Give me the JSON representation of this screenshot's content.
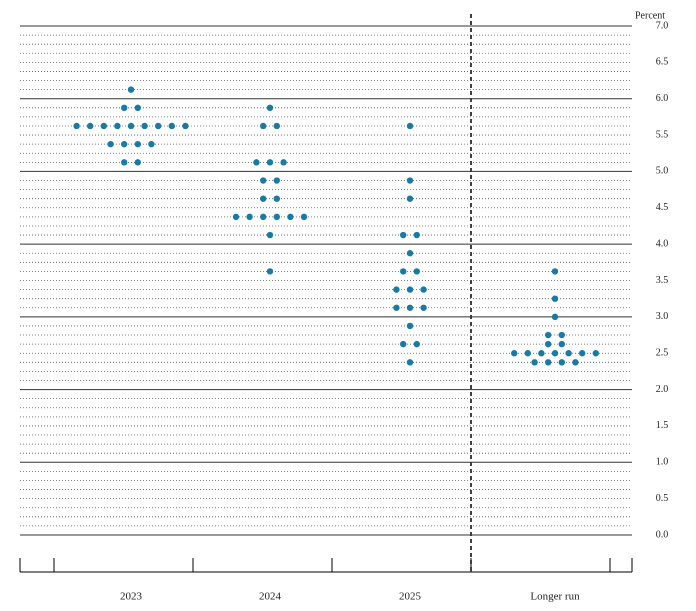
{
  "chart_data": {
    "type": "dot",
    "y_label": "Percent",
    "categories": [
      "2023",
      "2024",
      "2025",
      "Longer run"
    ],
    "color": "#1a7aa6",
    "dots": [
      [
        6.125,
        5.875,
        5.875,
        5.625,
        5.625,
        5.625,
        5.625,
        5.625,
        5.625,
        5.625,
        5.625,
        5.625,
        5.375,
        5.375,
        5.375,
        5.375,
        5.125,
        5.125
      ],
      [
        5.875,
        5.625,
        5.625,
        5.125,
        5.125,
        5.125,
        4.875,
        4.875,
        4.625,
        4.625,
        4.375,
        4.375,
        4.375,
        4.375,
        4.375,
        4.375,
        4.125,
        3.625
      ],
      [
        5.625,
        4.875,
        4.625,
        4.125,
        4.125,
        3.875,
        3.625,
        3.625,
        3.375,
        3.375,
        3.375,
        3.125,
        3.125,
        3.125,
        2.875,
        2.625,
        2.625,
        2.375
      ],
      [
        3.625,
        3.25,
        3.0,
        2.75,
        2.75,
        2.625,
        2.625,
        2.5,
        2.5,
        2.5,
        2.5,
        2.5,
        2.5,
        2.5,
        2.375,
        2.375,
        2.375,
        2.375
      ]
    ],
    "ylim": [
      0,
      7
    ],
    "yticks": [
      {
        "value": 0,
        "label": "0.0"
      },
      {
        "value": 0.5,
        "label": "0.5"
      },
      {
        "value": 1,
        "label": "1.0"
      },
      {
        "value": 1.5,
        "label": "1.5"
      },
      {
        "value": 2,
        "label": "2.0"
      },
      {
        "value": 2.5,
        "label": "2.5"
      },
      {
        "value": 3,
        "label": "3.0"
      },
      {
        "value": 3.5,
        "label": "3.5"
      },
      {
        "value": 4,
        "label": "4.0"
      },
      {
        "value": 4.5,
        "label": "4.5"
      },
      {
        "value": 5,
        "label": "5.0"
      },
      {
        "value": 5.5,
        "label": "5.5"
      },
      {
        "value": 6,
        "label": "6.0"
      },
      {
        "value": 6.5,
        "label": "6.5"
      },
      {
        "value": 7,
        "label": "7.0"
      }
    ],
    "grid": true
  }
}
